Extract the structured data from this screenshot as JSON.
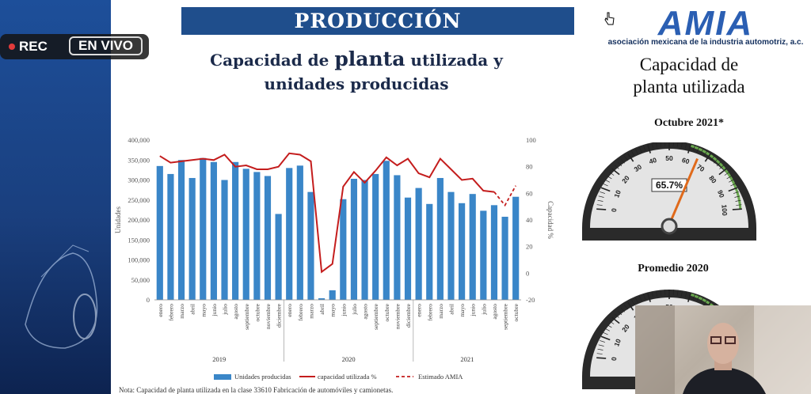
{
  "overlay": {
    "rec_label": "REC",
    "live_label": "EN VIVO"
  },
  "slide": {
    "header": "PRODUCCIÓN",
    "logo_text": "AMIA",
    "logo_subtitle": "asociación mexicana de la industria automotriz, a.c.",
    "chart_title_a": "Capacidad de ",
    "chart_title_b": "planta",
    "chart_title_c": " utilizada y",
    "chart_title_d": "unidades producidas",
    "note": "Nota: Capacidad de planta utilizada en la clase 33610 Fabricación de automóviles y camionetas.",
    "gauge_section_title_1": "Capacidad de",
    "gauge_section_title_2": "planta utilizada",
    "gauge1_label": "Octubre 2021*",
    "gauge1_value": "65.7%",
    "gauge1_pct": 65.7,
    "gauge2_label": "Promedio 2020"
  },
  "chart_data": {
    "type": "bar",
    "categories": [
      "enero",
      "febrero",
      "marzo",
      "abril",
      "mayo",
      "junio",
      "julio",
      "agosto",
      "septiembre",
      "octubre",
      "noviembre",
      "diciembre",
      "enero",
      "febrero",
      "marzo",
      "abril",
      "mayo",
      "junio",
      "julio",
      "agosto",
      "septiembre",
      "octubre",
      "noviembre",
      "diciembre",
      "enero",
      "febrero",
      "marzo",
      "abril",
      "mayo",
      "junio",
      "julio",
      "agosto",
      "septiembre",
      "octubre"
    ],
    "years": [
      "2019",
      "2020",
      "2021"
    ],
    "ylabel": "Unidades",
    "y2label": "Capacidad %",
    "ylim": [
      0,
      400000
    ],
    "y2lim": [
      -20,
      100
    ],
    "yticks": [
      "0",
      "50,000",
      "100,000",
      "150,000",
      "200,000",
      "250,000",
      "300,000",
      "350,000",
      "400,000"
    ],
    "y2ticks": [
      "-20",
      "0",
      "20",
      "40",
      "60",
      "80",
      "100"
    ],
    "series": [
      {
        "name": "Unidades producidas",
        "type": "bar",
        "color": "#3a86c8",
        "values": [
          335000,
          315000,
          350000,
          305000,
          355000,
          345000,
          300000,
          345000,
          328000,
          320000,
          310000,
          215000,
          330000,
          336000,
          270000,
          4000,
          24000,
          252000,
          303000,
          300000,
          315000,
          348000,
          312000,
          256000,
          280000,
          240000,
          305000,
          270000,
          242000,
          265000,
          223000,
          237000,
          208000,
          258000
        ]
      },
      {
        "name": "capacidad utilizada %",
        "type": "line",
        "color": "#c41d1d",
        "values": [
          88,
          83,
          84,
          85,
          86,
          85,
          89,
          80,
          81,
          78,
          78,
          80,
          90,
          89,
          84,
          1,
          7,
          65,
          76,
          68,
          77,
          87,
          81,
          86,
          75,
          72,
          86,
          78,
          70,
          71,
          62,
          61,
          null,
          null
        ]
      },
      {
        "name": "Estimado AMIA",
        "type": "dashed",
        "color": "#c41d1d",
        "values": [
          null,
          null,
          null,
          null,
          null,
          null,
          null,
          null,
          null,
          null,
          null,
          null,
          null,
          null,
          null,
          null,
          null,
          null,
          null,
          null,
          null,
          null,
          null,
          null,
          null,
          null,
          null,
          null,
          null,
          null,
          null,
          61,
          51,
          65.7
        ]
      }
    ]
  }
}
